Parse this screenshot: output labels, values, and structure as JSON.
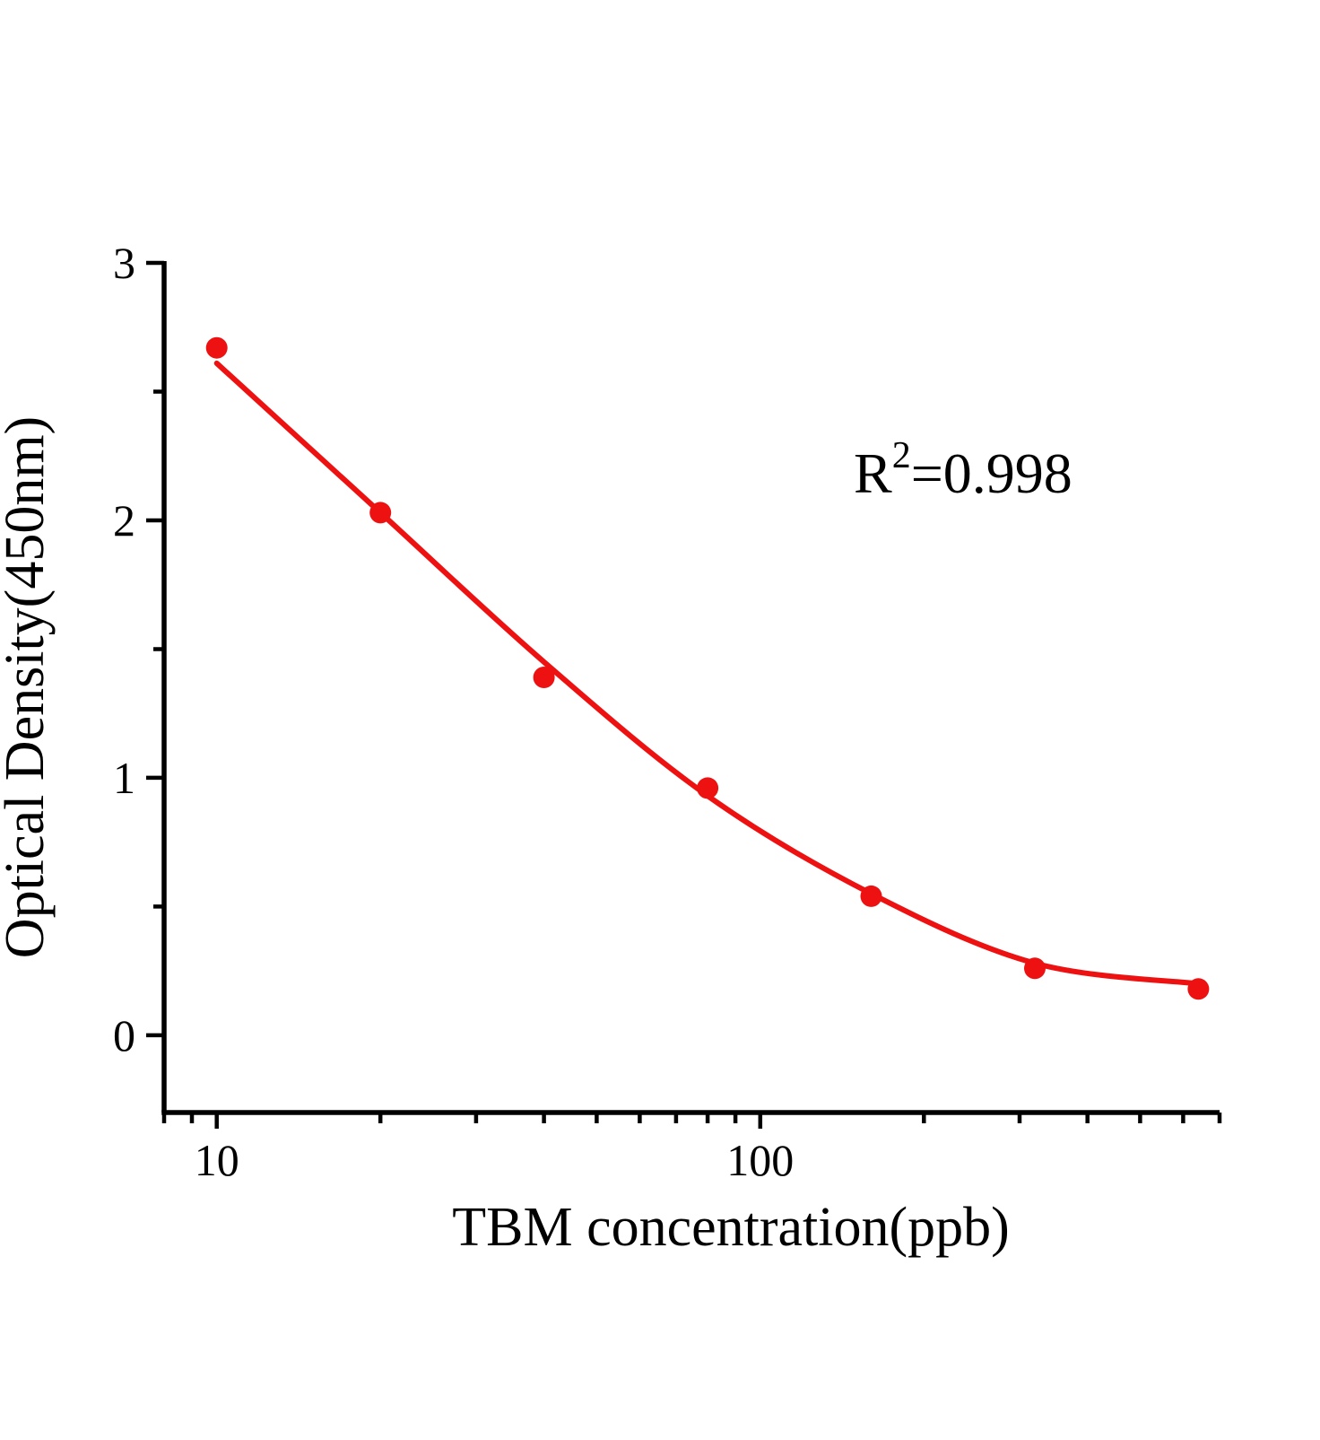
{
  "chart_data": {
    "type": "scatter",
    "title": "",
    "xlabel": "TBM concentration(ppb)",
    "ylabel": "Optical Density(450nm)",
    "x_scale": "log",
    "y_scale": "linear",
    "xlim": [
      8,
      700
    ],
    "ylim": [
      -0.3,
      3
    ],
    "grid": false,
    "legend": "none",
    "x": [
      10,
      20,
      40,
      80,
      160,
      320,
      640
    ],
    "y": [
      2.67,
      2.03,
      1.39,
      0.96,
      0.54,
      0.26,
      0.18
    ],
    "fit_curve": {
      "x": [
        10,
        20,
        40,
        80,
        160,
        320,
        640
      ],
      "y": [
        2.61,
        2.03,
        1.45,
        0.93,
        0.55,
        0.28,
        0.2
      ]
    },
    "annotation": {
      "text": "R²=0.998",
      "base": "R",
      "sup": "2",
      "rest": "=0.998"
    },
    "x_ticks_major": {
      "values": [
        10,
        100
      ],
      "labels": [
        "10",
        "100"
      ]
    },
    "x_ticks_minor": [
      8,
      9,
      20,
      30,
      40,
      50,
      60,
      70,
      80,
      90,
      200,
      300,
      400,
      500,
      600,
      700
    ],
    "y_ticks_major": {
      "values": [
        0,
        1,
        2,
        3
      ],
      "labels": [
        "0",
        "1",
        "2",
        "3"
      ]
    },
    "y_ticks_minor": [
      0.5,
      1.5,
      2.5
    ],
    "colors": {
      "curve": "#ee1111",
      "marker": "#ee1111",
      "axis": "#000000",
      "text": "#000000",
      "background": "#ffffff"
    },
    "marker": {
      "shape": "circle"
    }
  }
}
